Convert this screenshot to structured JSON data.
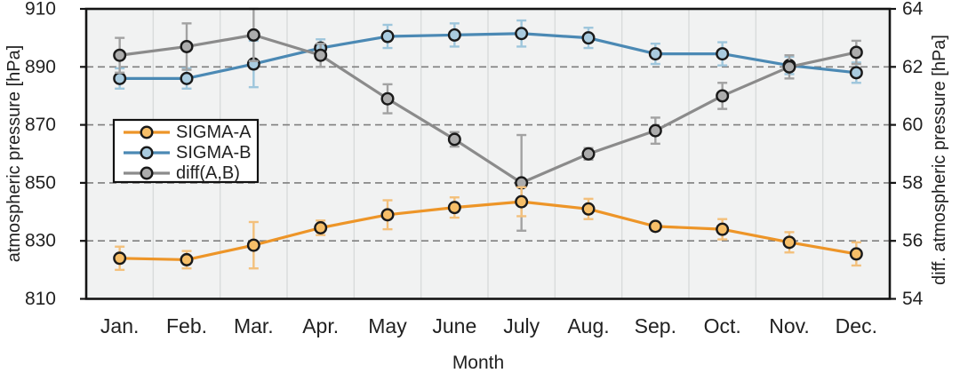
{
  "chart_data": {
    "type": "line",
    "title": "",
    "xlabel": "Month",
    "ylabel_left": "atmospheric pressure [hPa]",
    "ylabel_right": "diff. atmospheric pressure [hPa]",
    "categories": [
      "Jan.",
      "Feb.",
      "Mar.",
      "Apr.",
      "May",
      "June",
      "July",
      "Aug.",
      "Sep.",
      "Oct.",
      "Nov.",
      "Dec."
    ],
    "left_axis": {
      "min": 810,
      "max": 910,
      "ticks": [
        810,
        830,
        850,
        870,
        890,
        910
      ]
    },
    "right_axis": {
      "min": 54,
      "max": 64,
      "ticks": [
        54,
        56,
        58,
        60,
        62,
        64
      ]
    },
    "grid": {
      "horizontal": "dashed",
      "vertical": "solid-light"
    },
    "legend_position": "inside-upper-left",
    "series": [
      {
        "name": "SIGMA-A",
        "axis": "left",
        "line_color": "#ED9528",
        "marker_fill": "#F6BE68",
        "error_color": "#F3C07C",
        "values": [
          824,
          823.5,
          828.5,
          834.5,
          839,
          841.5,
          843.5,
          841,
          835,
          834,
          829.5,
          825.5
        ],
        "errors": [
          4,
          3,
          8,
          2.5,
          5,
          3.5,
          5,
          3.5,
          1.5,
          3.5,
          3.5,
          4
        ]
      },
      {
        "name": "SIGMA-B",
        "axis": "left",
        "line_color": "#4B89B4",
        "marker_fill": "#A9CBDF",
        "error_color": "#9EC6DC",
        "values": [
          886,
          886,
          891,
          896.5,
          900.5,
          901,
          901.5,
          900,
          894.5,
          894.5,
          890.5,
          888
        ],
        "errors": [
          3.5,
          3.5,
          8,
          3,
          4,
          4,
          4.5,
          3.5,
          3.5,
          4,
          3,
          3.5
        ]
      },
      {
        "name": "diff(A,B)",
        "axis": "right",
        "line_color": "#8B8B8B",
        "marker_fill": "#ACACAC",
        "error_color": "#A2A2A2",
        "values": [
          62.4,
          62.7,
          63.1,
          62.4,
          60.9,
          59.5,
          58.0,
          59.0,
          59.8,
          61.0,
          62.0,
          62.5
        ],
        "errors": [
          0.6,
          0.8,
          0.9,
          0.4,
          0.5,
          0.25,
          1.65,
          0.2,
          0.45,
          0.45,
          0.4,
          0.4
        ]
      }
    ],
    "colors": {
      "plot_background": "#F1F2F2",
      "frame": "#141414",
      "dashed_gridline": "#7F7F7F",
      "vertical_gridline": "#D9DBDB",
      "text": "#212121",
      "legend_background": "#FFFFFF",
      "legend_border": "#111111",
      "marker_ring": "#1A1A1A"
    }
  }
}
